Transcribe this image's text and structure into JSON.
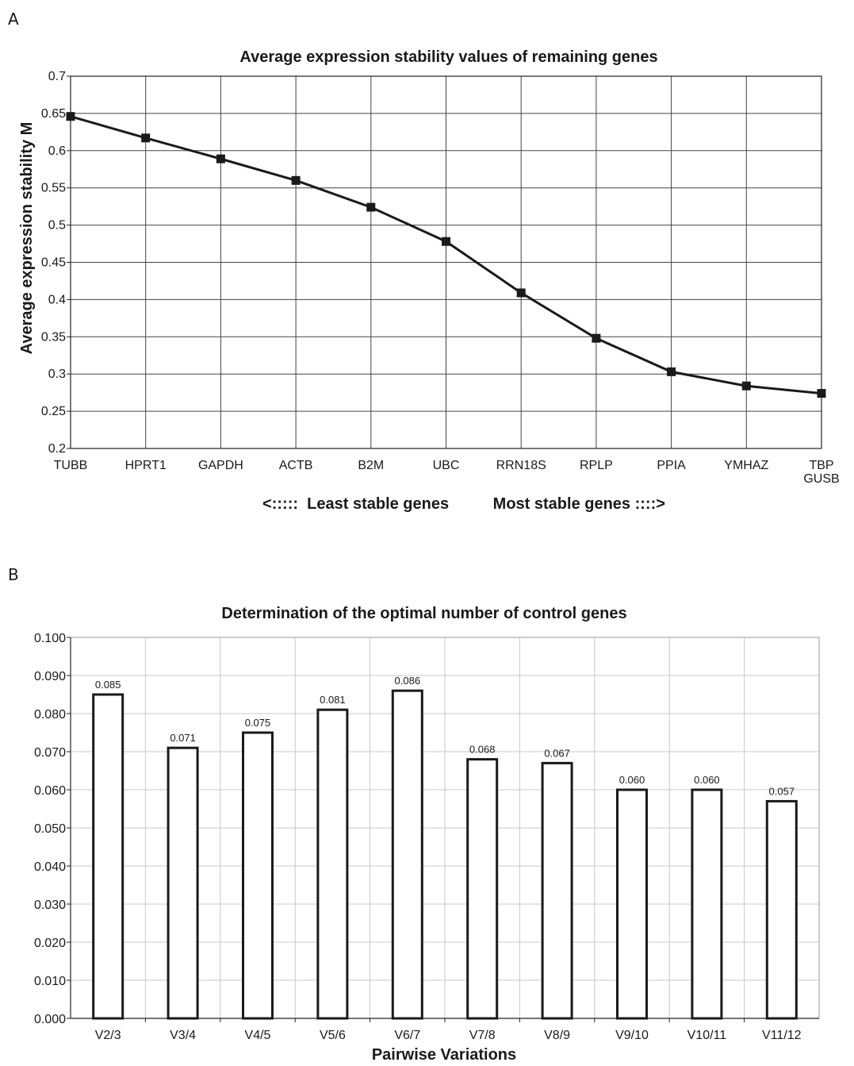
{
  "panels": {
    "a_letter": "A",
    "b_letter": "B"
  },
  "chart_data": [
    {
      "type": "line",
      "title": "Average expression stability values of remaining genes",
      "ylabel": "Average expression stability M",
      "xlabel": "<:::::  Least stable genes          Most stable genes ::::>",
      "categories": [
        "TUBB",
        "HPRT1",
        "GAPDH",
        "ACTB",
        "B2M",
        "UBC",
        "RRN18S",
        "RPLP",
        "PPIA",
        "YMHAZ",
        "TBP\nGUSB"
      ],
      "values": [
        0.646,
        0.617,
        0.589,
        0.56,
        0.524,
        0.478,
        0.409,
        0.348,
        0.303,
        0.284,
        0.274
      ],
      "ylim": [
        0.2,
        0.7
      ],
      "yticks": [
        "0.2",
        "0.25",
        "0.3",
        "0.35",
        "0.4",
        "0.45",
        "0.5",
        "0.55",
        "0.6",
        "0.65",
        "0.7"
      ],
      "grid": true
    },
    {
      "type": "bar",
      "title": "Determination of the optimal number of control genes",
      "xlabel": "Pairwise Variations",
      "categories": [
        "V2/3",
        "V3/4",
        "V4/5",
        "V5/6",
        "V6/7",
        "V7/8",
        "V8/9",
        "V9/10",
        "V10/11",
        "V11/12"
      ],
      "values": [
        0.085,
        0.071,
        0.075,
        0.081,
        0.086,
        0.068,
        0.067,
        0.06,
        0.06,
        0.057
      ],
      "data_labels": [
        "0.085",
        "0.071",
        "0.075",
        "0.081",
        "0.086",
        "0.068",
        "0.067",
        "0.060",
        "0.060",
        "0.057"
      ],
      "ylim": [
        0,
        0.1
      ],
      "yticks": [
        "0.000",
        "0.010",
        "0.020",
        "0.030",
        "0.040",
        "0.050",
        "0.060",
        "0.070",
        "0.080",
        "0.090",
        "0.100"
      ],
      "grid": true
    }
  ]
}
